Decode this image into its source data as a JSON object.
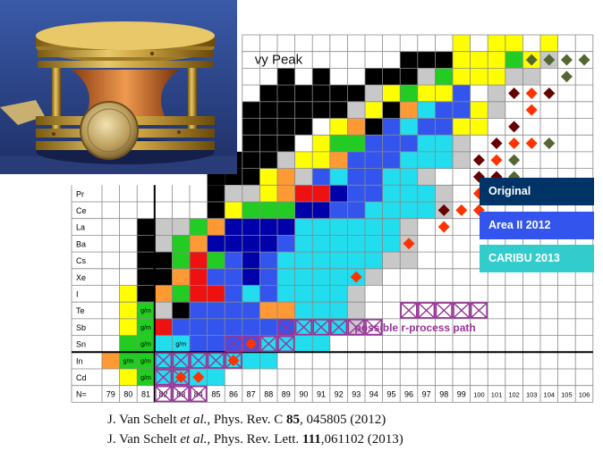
{
  "nuclide_chart": {
    "peak_label": "vy Peak",
    "path_label": "possible r-process path",
    "n_label": "N=",
    "neutron_numbers": [
      "79",
      "80",
      "81",
      "82",
      "83",
      "84",
      "85",
      "86",
      "87",
      "88",
      "89",
      "90",
      "91",
      "92",
      "93",
      "94",
      "95",
      "96",
      "97",
      "98",
      "99",
      "100",
      "101",
      "102",
      "103",
      "104",
      "105",
      "106"
    ],
    "elements_bottom_up": [
      "Cd",
      "In",
      "Sn",
      "Sb",
      "Te",
      "I",
      "Xe",
      "Cs",
      "Ba",
      "La",
      "Ce",
      "Pr"
    ],
    "isomer_label": "g/m",
    "colors": {
      "stable": "#000000",
      "grey": "#c8c8c8",
      "yellow": "#ffff00",
      "green": "#22cc22",
      "orange": "#ff9933",
      "red": "#ee1111",
      "darkblue": "#0000aa",
      "blue": "#3355ee",
      "cyan": "#22ddee",
      "path": "#993399",
      "diamond_orange": "#ff3300",
      "diamond_maroon": "#660000",
      "diamond_olive": "#556633"
    }
  },
  "legend": [
    {
      "label": "Original",
      "color": "#003366"
    },
    {
      "label": "Area II 2012",
      "color": "#3355ee"
    },
    {
      "label": "CARIBU 2013",
      "color": "#33cccc"
    }
  ],
  "references": [
    {
      "authors": "J. Van Schelt",
      "etal": "et al.",
      "journal": ", Phys. Rev. C ",
      "volume": "85",
      "rest": ", 045805 (2012)"
    },
    {
      "authors": "J. Van Schelt",
      "etal": "et al.",
      "journal": ", Phys. Rev. Lett. ",
      "volume": "111",
      "rest": ",061102 (2013)"
    }
  ]
}
